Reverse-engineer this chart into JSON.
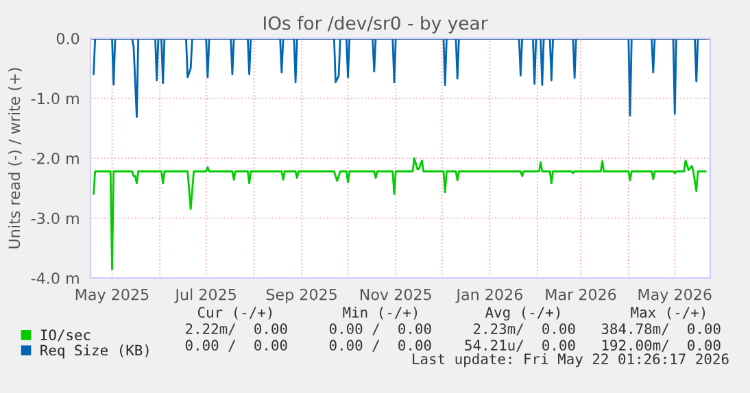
{
  "chart_data": {
    "type": "line",
    "title": "IOs for /dev/sr0 - by year",
    "ylabel": "Units read (-) / write (+)",
    "xlim": [
      "2025-04-17",
      "2026-05-24"
    ],
    "ylim": [
      -4.0,
      0.0
    ],
    "yticks": [
      {
        "value": 0.0,
        "label": "0.0"
      },
      {
        "value": -1.0,
        "label": "-1.0 m"
      },
      {
        "value": -2.0,
        "label": "-2.0 m"
      },
      {
        "value": -3.0,
        "label": "-3.0 m"
      },
      {
        "value": -4.0,
        "label": "-4.0 m"
      }
    ],
    "xticks": [
      {
        "value": "2025-05-01",
        "label": "May 2025"
      },
      {
        "value": "2025-06-01",
        "label": null
      },
      {
        "value": "2025-07-01",
        "label": "Jul 2025"
      },
      {
        "value": "2025-08-01",
        "label": null
      },
      {
        "value": "2025-09-01",
        "label": "Sep 2025"
      },
      {
        "value": "2025-10-01",
        "label": null
      },
      {
        "value": "2025-11-01",
        "label": "Nov 2025"
      },
      {
        "value": "2025-12-01",
        "label": null
      },
      {
        "value": "2026-01-01",
        "label": "Jan 2026"
      },
      {
        "value": "2026-02-01",
        "label": null
      },
      {
        "value": "2026-03-01",
        "label": "Mar 2026"
      },
      {
        "value": "2026-04-01",
        "label": null
      },
      {
        "value": "2026-05-01",
        "label": "May 2026"
      }
    ],
    "grid": true,
    "legend": "bottom left",
    "marker": "none",
    "line_style": "solid",
    "series": [
      {
        "name": "IO/sec",
        "color": "#00cc00",
        "x": [
          "2025-04-19",
          "2025-04-20",
          "2025-04-30",
          "2025-05-01",
          "2025-05-02",
          "2025-05-14",
          "2025-05-15",
          "2025-05-16",
          "2025-05-17",
          "2025-05-18",
          "2025-06-02",
          "2025-06-03",
          "2025-06-04",
          "2025-06-19",
          "2025-06-21",
          "2025-06-23",
          "2025-07-01",
          "2025-07-02",
          "2025-07-03",
          "2025-07-18",
          "2025-07-19",
          "2025-07-20",
          "2025-07-28",
          "2025-07-29",
          "2025-07-30",
          "2025-08-19",
          "2025-08-20",
          "2025-08-21",
          "2025-08-28",
          "2025-08-29",
          "2025-08-30",
          "2025-09-22",
          "2025-09-24",
          "2025-09-26",
          "2025-09-30",
          "2025-10-01",
          "2025-10-02",
          "2025-10-18",
          "2025-10-19",
          "2025-10-20",
          "2025-10-30",
          "2025-10-31",
          "2025-11-01",
          "2025-11-12",
          "2025-11-13",
          "2025-11-15",
          "2025-11-16",
          "2025-11-18",
          "2025-11-19",
          "2025-12-02",
          "2025-12-03",
          "2025-12-04",
          "2025-12-10",
          "2025-12-11",
          "2025-12-12",
          "2026-01-21",
          "2026-01-22",
          "2026-01-23",
          "2026-02-02",
          "2026-02-03",
          "2026-02-04",
          "2026-02-09",
          "2026-02-10",
          "2026-02-11",
          "2026-02-23",
          "2026-02-24",
          "2026-02-25",
          "2026-03-14",
          "2026-03-15",
          "2026-03-16",
          "2026-04-01",
          "2026-04-02",
          "2026-04-03",
          "2026-04-16",
          "2026-04-17",
          "2026-04-18",
          "2026-04-30",
          "2026-05-01",
          "2026-05-02",
          "2026-05-07",
          "2026-05-08",
          "2026-05-10",
          "2026-05-12",
          "2026-05-13",
          "2026-05-15",
          "2026-05-16",
          "2026-05-21"
        ],
        "values": [
          -2.6,
          -2.22,
          -2.22,
          -3.85,
          -2.22,
          -2.22,
          -2.3,
          -2.3,
          -2.42,
          -2.22,
          -2.22,
          -2.42,
          -2.22,
          -2.22,
          -2.85,
          -2.22,
          -2.22,
          -2.15,
          -2.22,
          -2.22,
          -2.36,
          -2.22,
          -2.22,
          -2.42,
          -2.22,
          -2.22,
          -2.36,
          -2.22,
          -2.22,
          -2.33,
          -2.22,
          -2.22,
          -2.38,
          -2.22,
          -2.22,
          -2.4,
          -2.22,
          -2.22,
          -2.33,
          -2.22,
          -2.22,
          -2.6,
          -2.22,
          -2.22,
          -2.0,
          -2.18,
          -2.18,
          -2.04,
          -2.22,
          -2.22,
          -2.57,
          -2.22,
          -2.22,
          -2.37,
          -2.22,
          -2.22,
          -2.3,
          -2.22,
          -2.22,
          -2.07,
          -2.22,
          -2.22,
          -2.42,
          -2.22,
          -2.22,
          -2.25,
          -2.22,
          -2.22,
          -2.05,
          -2.22,
          -2.22,
          -2.37,
          -2.22,
          -2.22,
          -2.35,
          -2.22,
          -2.22,
          -2.25,
          -2.22,
          -2.22,
          -2.04,
          -2.2,
          -2.13,
          -2.22,
          -2.55,
          -2.22,
          -2.22
        ]
      },
      {
        "name": "Req Size (KB)",
        "color": "#0066b3",
        "x": [
          "2025-04-19",
          "2025-04-20",
          "2025-05-01",
          "2025-05-02",
          "2025-05-03",
          "2025-05-14",
          "2025-05-15",
          "2025-05-17",
          "2025-05-18",
          "2025-05-29",
          "2025-05-30",
          "2025-05-31",
          "2025-06-02",
          "2025-06-03",
          "2025-06-04",
          "2025-06-18",
          "2025-06-19",
          "2025-06-21",
          "2025-06-22",
          "2025-07-01",
          "2025-07-02",
          "2025-07-03",
          "2025-07-17",
          "2025-07-18",
          "2025-07-19",
          "2025-07-28",
          "2025-07-29",
          "2025-07-30",
          "2025-08-18",
          "2025-08-19",
          "2025-08-20",
          "2025-08-27",
          "2025-08-28",
          "2025-08-29",
          "2025-09-22",
          "2025-09-23",
          "2025-09-25",
          "2025-09-26",
          "2025-09-30",
          "2025-10-01",
          "2025-10-02",
          "2025-10-17",
          "2025-10-18",
          "2025-10-19",
          "2025-10-30",
          "2025-10-31",
          "2025-11-01",
          "2025-12-02",
          "2025-12-03",
          "2025-12-04",
          "2025-12-10",
          "2025-12-11",
          "2025-12-12",
          "2026-01-20",
          "2026-01-21",
          "2026-01-22",
          "2026-01-29",
          "2026-01-30",
          "2026-01-31",
          "2026-02-03",
          "2026-02-04",
          "2026-02-05",
          "2026-02-09",
          "2026-02-10",
          "2026-02-11",
          "2026-02-24",
          "2026-02-25",
          "2026-02-26",
          "2026-04-01",
          "2026-04-02",
          "2026-04-03",
          "2026-04-16",
          "2026-04-17",
          "2026-04-18",
          "2026-04-30",
          "2026-05-01",
          "2026-05-02",
          "2026-05-14",
          "2026-05-15",
          "2026-05-16",
          "2026-05-21"
        ],
        "values": [
          -0.6,
          0,
          0,
          -0.77,
          0,
          0,
          -0.15,
          -1.31,
          0,
          0,
          -0.7,
          0,
          0,
          -0.75,
          0,
          0,
          -0.65,
          -0.5,
          0,
          0,
          -0.65,
          0,
          0,
          -0.6,
          0,
          0,
          -0.6,
          0,
          0,
          -0.57,
          0,
          0,
          -0.73,
          0,
          0,
          -0.73,
          -0.63,
          0,
          0,
          -0.65,
          0,
          0,
          -0.55,
          0,
          0,
          -0.73,
          0,
          0,
          -0.78,
          0,
          0,
          -0.67,
          0,
          0,
          -0.62,
          0,
          0,
          -0.76,
          0,
          0,
          -0.78,
          0,
          0,
          -0.7,
          0,
          0,
          -0.66,
          0,
          0,
          -1.29,
          0,
          0,
          -0.57,
          0,
          0,
          -1.26,
          0,
          0,
          -0.72,
          0,
          0
        ]
      }
    ],
    "annotations": [
      "Cur (-/+)",
      "Min (-/+)",
      "Avg (-/+)",
      "Max (-/+)",
      "2.22m/  0.00",
      "0.00 /  0.00",
      "2.23m/  0.00",
      "384.78m/  0.00",
      "0.00 /  0.00",
      "0.00 /  0.00",
      "54.21u/  0.00",
      "192.00m/  0.00",
      "Last update: Fri May 22 01:26:17 2026"
    ]
  }
}
